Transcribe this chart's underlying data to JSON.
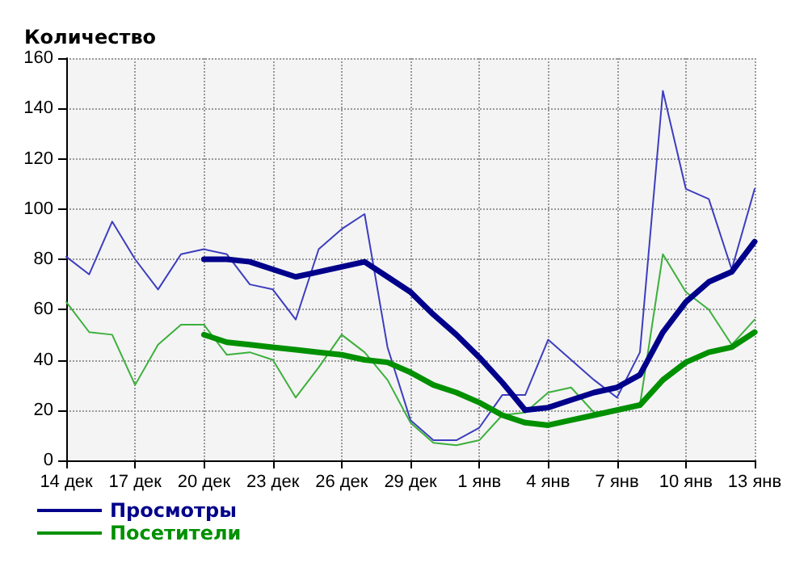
{
  "chart_data": {
    "type": "line",
    "ylabel": "Количество",
    "categories": [
      "14 дек",
      null,
      null,
      "17 дек",
      null,
      null,
      "20 дек",
      null,
      null,
      "23 дек",
      null,
      null,
      "26 дек",
      null,
      null,
      "29 дек",
      null,
      null,
      "1 янв",
      null,
      null,
      "4 янв",
      null,
      null,
      "7 янв",
      null,
      null,
      "10 янв",
      null,
      null,
      "13 янв"
    ],
    "series": [
      {
        "color": "#3d3dbf",
        "values": [
          81,
          74,
          95,
          80,
          68,
          82,
          84,
          82,
          70,
          68,
          56,
          84,
          92,
          98,
          45,
          16,
          8,
          8,
          13,
          26,
          26,
          48,
          40,
          32,
          25,
          43,
          147,
          108,
          104,
          76,
          108
        ]
      },
      {
        "color": "#3cb03c",
        "values": [
          63,
          51,
          50,
          30,
          46,
          54,
          54,
          42,
          43,
          40,
          25,
          37,
          50,
          43,
          32,
          15,
          7,
          6,
          8,
          18,
          19,
          27,
          29,
          19,
          20,
          22,
          82,
          67,
          60,
          46,
          56
        ]
      },
      {
        "name": "Просмотры",
        "color": "#00008b",
        "values": [
          null,
          null,
          null,
          null,
          null,
          null,
          80,
          80,
          79,
          76,
          73,
          75,
          77,
          79,
          73,
          67,
          58,
          50,
          41,
          31,
          20,
          21,
          24,
          27,
          29,
          34,
          51,
          63,
          71,
          75,
          87
        ]
      },
      {
        "name": "Посетители",
        "color": "#009000",
        "values": [
          null,
          null,
          null,
          null,
          null,
          null,
          50,
          47,
          46,
          45,
          44,
          43,
          42,
          40,
          39,
          35,
          30,
          27,
          23,
          18,
          15,
          14,
          16,
          18,
          20,
          22,
          32,
          39,
          43,
          45,
          51
        ]
      }
    ],
    "ylim": [
      0,
      160
    ],
    "yticks": [
      0,
      20,
      40,
      60,
      80,
      100,
      120,
      140,
      160
    ],
    "grid": true,
    "legend": "bottom left",
    "marker": "none",
    "line_style": "solid"
  }
}
